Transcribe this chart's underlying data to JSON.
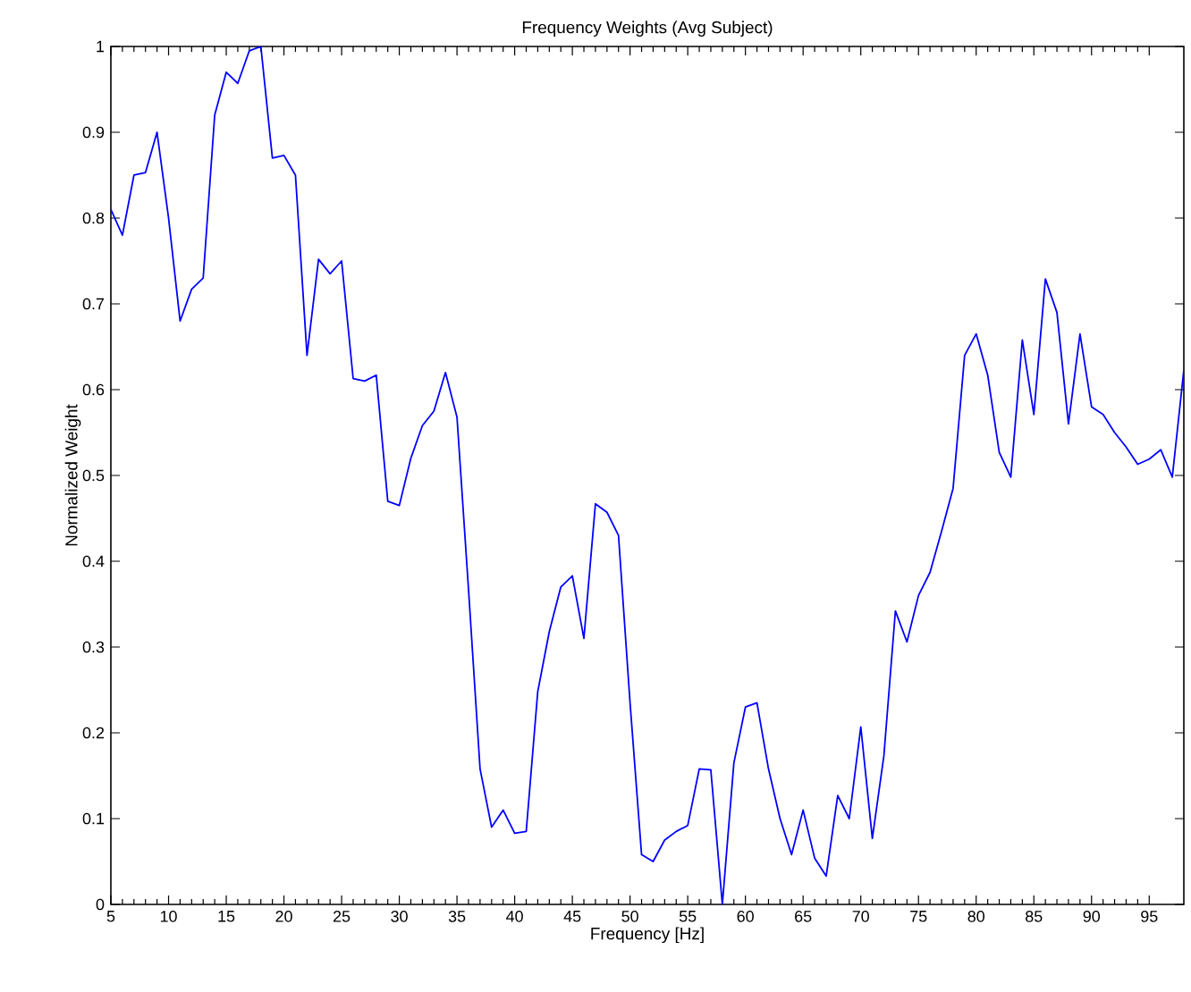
{
  "chart_data": {
    "type": "line",
    "title": "Frequency Weights (Avg Subject)",
    "xlabel": "Frequency [Hz]",
    "ylabel": "Normalized Weight",
    "x": [
      5,
      6,
      7,
      8,
      9,
      10,
      11,
      12,
      13,
      14,
      15,
      16,
      17,
      18,
      19,
      20,
      21,
      22,
      23,
      24,
      25,
      26,
      27,
      28,
      29,
      30,
      31,
      32,
      33,
      34,
      35,
      36,
      37,
      38,
      39,
      40,
      41,
      42,
      43,
      44,
      45,
      46,
      47,
      48,
      49,
      50,
      51,
      52,
      53,
      54,
      55,
      56,
      57,
      58,
      59,
      60,
      61,
      62,
      63,
      64,
      65,
      66,
      67,
      68,
      69,
      70,
      71,
      72,
      73,
      74,
      75,
      76,
      77,
      78,
      79,
      80,
      81,
      82,
      83,
      84,
      85,
      86,
      87,
      88,
      89,
      90,
      91,
      92,
      93,
      94,
      95,
      96,
      97,
      98
    ],
    "series": [
      {
        "color": "#0000ff",
        "values": [
          0.81,
          0.78,
          0.85,
          0.853,
          0.9,
          0.8,
          0.68,
          0.717,
          0.73,
          0.92,
          0.97,
          0.957,
          0.995,
          1.0,
          0.87,
          0.873,
          0.85,
          0.64,
          0.752,
          0.735,
          0.75,
          0.613,
          0.61,
          0.617,
          0.47,
          0.465,
          0.52,
          0.558,
          0.575,
          0.62,
          0.568,
          0.367,
          0.158,
          0.09,
          0.11,
          0.083,
          0.085,
          0.248,
          0.318,
          0.37,
          0.383,
          0.31,
          0.467,
          0.457,
          0.43,
          0.235,
          0.058,
          0.05,
          0.075,
          0.085,
          0.092,
          0.158,
          0.157,
          0.0,
          0.165,
          0.23,
          0.235,
          0.158,
          0.1,
          0.058,
          0.11,
          0.054,
          0.033,
          0.127,
          0.1,
          0.207,
          0.077,
          0.173,
          0.342,
          0.306,
          0.36,
          0.387,
          0.435,
          0.485,
          0.64,
          0.665,
          0.617,
          0.527,
          0.498,
          0.658,
          0.571,
          0.729,
          0.69,
          0.56,
          0.665,
          0.58,
          0.571,
          0.55,
          0.533,
          0.513,
          0.519,
          0.53,
          0.498,
          0.623
        ]
      }
    ],
    "xlim": [
      5,
      98
    ],
    "ylim": [
      0,
      1
    ],
    "xticks": [
      5,
      10,
      15,
      20,
      25,
      30,
      35,
      40,
      45,
      50,
      55,
      60,
      65,
      70,
      75,
      80,
      85,
      90,
      95
    ],
    "yticks": [
      0,
      0.1,
      0.2,
      0.3,
      0.4,
      0.5,
      0.6,
      0.7,
      0.8,
      0.9,
      1
    ],
    "grid": false,
    "marker": "none",
    "line_style": "solid"
  }
}
